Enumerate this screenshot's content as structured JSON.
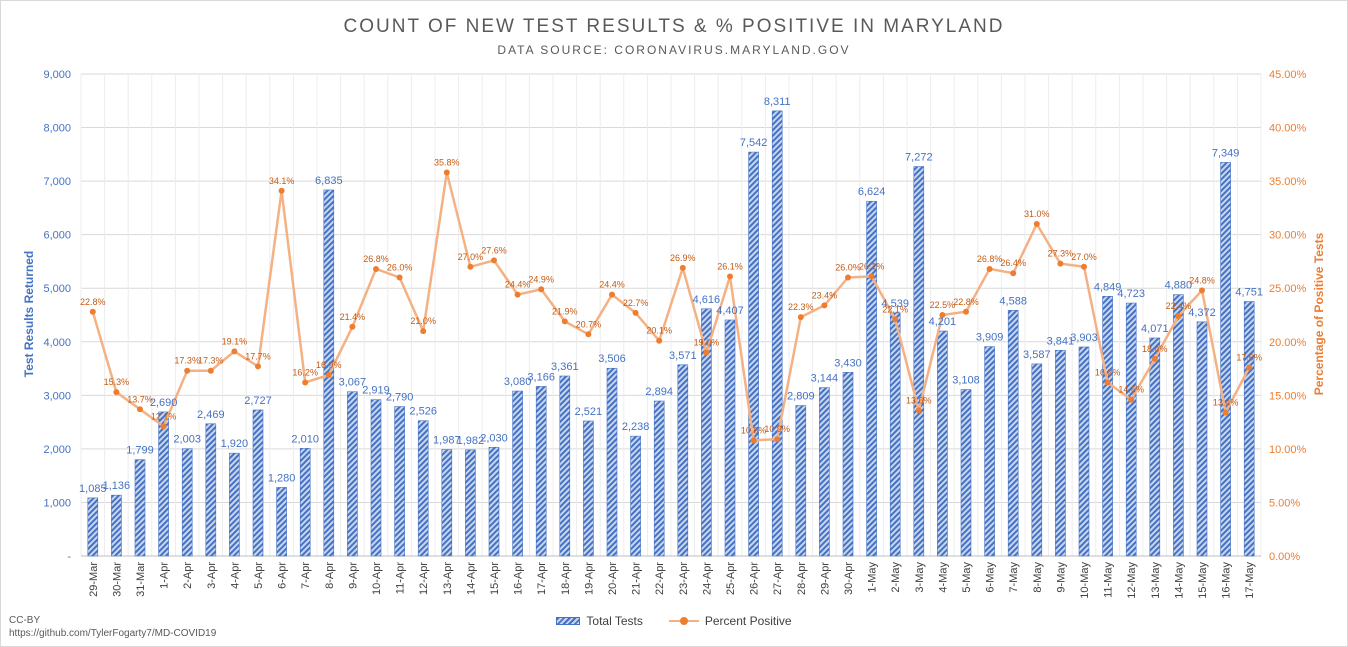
{
  "chart_data": {
    "type": "bar",
    "title": "COUNT OF NEW TEST RESULTS & % POSITIVE IN MARYLAND",
    "subtitle": "DATA SOURCE: CORONAVIRUS.MARYLAND.GOV",
    "ylabel": "Test Results Returned",
    "y2label": "Percentage of Positive Tests",
    "ylim": [
      0,
      9000
    ],
    "y2lim": [
      0,
      45
    ],
    "yticks": [
      "-",
      "1,000",
      "2,000",
      "3,000",
      "4,000",
      "5,000",
      "6,000",
      "7,000",
      "8,000",
      "9,000"
    ],
    "y2ticks": [
      "0.00%",
      "5.00%",
      "10.00%",
      "15.00%",
      "20.00%",
      "25.00%",
      "30.00%",
      "35.00%",
      "40.00%",
      "45.00%"
    ],
    "categories": [
      "29-Mar",
      "30-Mar",
      "31-Mar",
      "1-Apr",
      "2-Apr",
      "3-Apr",
      "4-Apr",
      "5-Apr",
      "6-Apr",
      "7-Apr",
      "8-Apr",
      "9-Apr",
      "10-Apr",
      "11-Apr",
      "12-Apr",
      "13-Apr",
      "14-Apr",
      "15-Apr",
      "16-Apr",
      "17-Apr",
      "18-Apr",
      "19-Apr",
      "20-Apr",
      "21-Apr",
      "22-Apr",
      "23-Apr",
      "24-Apr",
      "25-Apr",
      "26-Apr",
      "27-Apr",
      "28-Apr",
      "29-Apr",
      "30-Apr",
      "1-May",
      "2-May",
      "3-May",
      "4-May",
      "5-May",
      "6-May",
      "7-May",
      "8-May",
      "9-May",
      "10-May",
      "11-May",
      "12-May",
      "13-May",
      "14-May",
      "15-May",
      "16-May",
      "17-May"
    ],
    "series": [
      {
        "name": "Total Tests",
        "type": "bar",
        "axis": "left",
        "values": [
          1085,
          1136,
          1799,
          2690,
          2003,
          2469,
          1920,
          2727,
          1280,
          2010,
          6835,
          3067,
          2919,
          2790,
          2526,
          1987,
          1982,
          2030,
          3080,
          3166,
          3361,
          2521,
          3506,
          2238,
          2894,
          3571,
          4616,
          4407,
          7542,
          8311,
          2809,
          3144,
          3430,
          6624,
          4539,
          7272,
          4201,
          3108,
          3909,
          4588,
          3587,
          3841,
          3903,
          4849,
          4723,
          4071,
          4880,
          4372,
          7349,
          4751
        ],
        "labels": [
          "1,085",
          "1,136",
          "1,799",
          "2,690",
          "2,003",
          "2,469",
          "1,920",
          "2,727",
          "1,280",
          "2,010",
          "6,835",
          "3,067",
          "2,919",
          "2,790",
          "2,526",
          "1,987",
          "1,982",
          "2,030",
          "3,080",
          "3,166",
          "3,361",
          "2,521",
          "3,506",
          "2,238",
          "2,894",
          "3,571",
          "4,616",
          "4,407",
          "7,542",
          "8,311",
          "2,809",
          "3,144",
          "3,430",
          "6,624",
          "4,539",
          "7,272",
          "4,201",
          "3,108",
          "3,909",
          "4,588",
          "3,587",
          "3,841",
          "3,903",
          "4,849",
          "4,723",
          "4,071",
          "4,880",
          "4,372",
          "7,349",
          "4,751"
        ],
        "color": "#4472c4"
      },
      {
        "name": "Percent Positive",
        "type": "line",
        "axis": "right",
        "values": [
          22.8,
          15.3,
          13.7,
          12.1,
          17.3,
          17.3,
          19.1,
          17.7,
          34.1,
          16.2,
          16.9,
          21.4,
          26.8,
          26.0,
          21.0,
          35.8,
          27.0,
          27.6,
          24.4,
          24.9,
          21.9,
          20.7,
          24.4,
          22.7,
          20.1,
          26.9,
          19.0,
          26.1,
          10.8,
          10.9,
          22.3,
          23.4,
          26.0,
          26.1,
          22.1,
          13.6,
          22.5,
          22.8,
          26.8,
          26.4,
          31.0,
          27.3,
          27.0,
          16.2,
          14.6,
          18.4,
          22.4,
          24.8,
          13.4,
          17.6
        ],
        "labels": [
          "22.8%",
          "15.3%",
          "13.7%",
          "12.1%",
          "17.3%",
          "17.3%",
          "19.1%",
          "17.7%",
          "34.1%",
          "16.2%",
          "16.9%",
          "21.4%",
          "26.8%",
          "26.0%",
          "21.0%",
          "35.8%",
          "27.0%",
          "27.6%",
          "24.4%",
          "24.9%",
          "21.9%",
          "20.7%",
          "24.4%",
          "22.7%",
          "20.1%",
          "26.9%",
          "19.0%",
          "26.1%",
          "10.8%",
          "10.9%",
          "22.3%",
          "23.4%",
          "26.0%",
          "26.1%",
          "22.1%",
          "13.6%",
          "22.5%",
          "22.8%",
          "26.8%",
          "26.4%",
          "31.0%",
          "27.3%",
          "27.0%",
          "16.2%",
          "14.6%",
          "18.4%",
          "22.4%",
          "24.8%",
          "13.4%",
          "17.6%"
        ],
        "color": "#ed7d31"
      }
    ],
    "grid": true,
    "legend": "bottom"
  },
  "credit": {
    "license": "CC-BY",
    "url": "https://github.com/TylerFogarty7/MD-COVID19"
  },
  "colors": {
    "bar": "#4472c4",
    "line": "#f4b183",
    "marker": "#ed7d31",
    "grid": "#d9d9d9",
    "text": "#595959"
  }
}
